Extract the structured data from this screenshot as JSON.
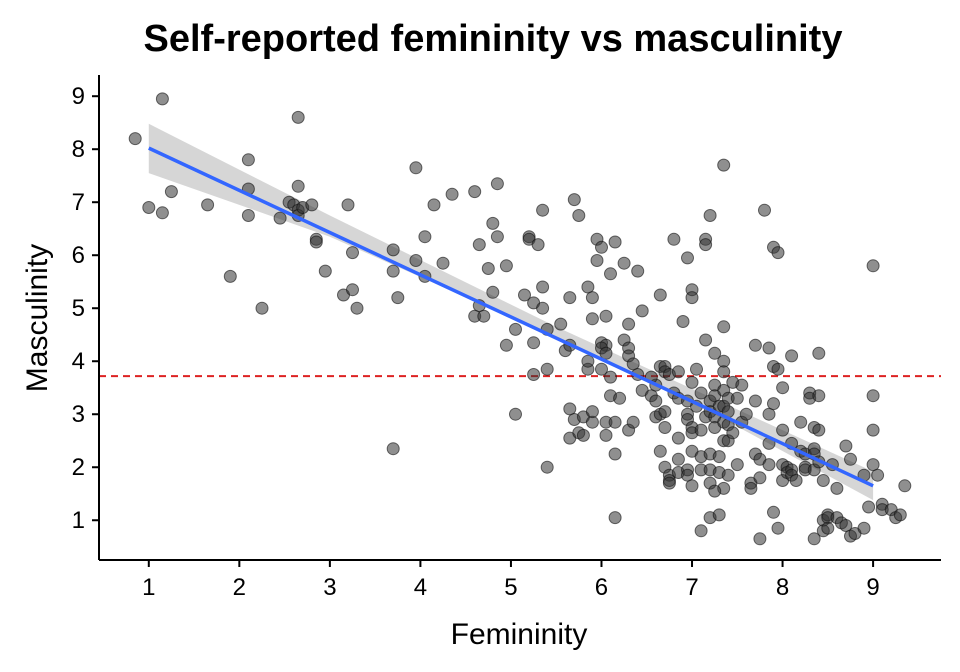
{
  "chart_data": {
    "type": "scatter",
    "title": "Self-reported femininity vs masculinity",
    "xlabel": "Femininity",
    "ylabel": "Masculinity",
    "xlim": [
      0.45,
      9.75
    ],
    "ylim": [
      0.25,
      9.4
    ],
    "x_ticks": [
      1,
      2,
      3,
      4,
      5,
      6,
      7,
      8,
      9
    ],
    "y_ticks": [
      1,
      2,
      3,
      4,
      5,
      6,
      7,
      8,
      9
    ],
    "grid": false,
    "legend": "none",
    "point_color": "#333333",
    "fit_line_color": "#3366FF",
    "band_color": "#999999",
    "reference_line_color": "#DD2222",
    "reference_line": {
      "y": 3.72,
      "style": "dashed"
    },
    "fit_line": {
      "x": [
        1,
        9
      ],
      "y": [
        8.02,
        1.65
      ]
    },
    "confidence_band": {
      "x": [
        1,
        3,
        5.5,
        7,
        9
      ],
      "lower": [
        7.55,
        6.35,
        4.45,
        3.23,
        1.38
      ],
      "upper": [
        8.48,
        6.75,
        4.65,
        3.48,
        1.92
      ]
    },
    "points": [
      [
        0.85,
        8.2
      ],
      [
        1.15,
        8.95
      ],
      [
        1.0,
        6.9
      ],
      [
        1.15,
        6.8
      ],
      [
        1.25,
        7.2
      ],
      [
        1.65,
        6.95
      ],
      [
        1.9,
        5.6
      ],
      [
        2.1,
        7.8
      ],
      [
        2.1,
        7.25
      ],
      [
        2.1,
        6.75
      ],
      [
        2.25,
        5.0
      ],
      [
        2.45,
        6.7
      ],
      [
        2.55,
        7.0
      ],
      [
        2.65,
        8.6
      ],
      [
        2.65,
        7.3
      ],
      [
        2.6,
        6.95
      ],
      [
        2.65,
        6.85
      ],
      [
        2.65,
        6.75
      ],
      [
        2.7,
        6.9
      ],
      [
        2.8,
        6.95
      ],
      [
        2.85,
        6.3
      ],
      [
        2.85,
        6.25
      ],
      [
        2.95,
        5.7
      ],
      [
        3.15,
        5.25
      ],
      [
        3.2,
        6.95
      ],
      [
        3.25,
        5.35
      ],
      [
        3.25,
        6.05
      ],
      [
        3.3,
        5.0
      ],
      [
        3.7,
        6.1
      ],
      [
        3.7,
        5.7
      ],
      [
        3.75,
        5.2
      ],
      [
        3.7,
        2.35
      ],
      [
        3.95,
        7.65
      ],
      [
        3.95,
        5.9
      ],
      [
        4.05,
        6.35
      ],
      [
        4.05,
        5.6
      ],
      [
        4.15,
        6.95
      ],
      [
        4.25,
        5.85
      ],
      [
        4.35,
        7.15
      ],
      [
        4.6,
        7.2
      ],
      [
        4.65,
        6.2
      ],
      [
        4.65,
        5.05
      ],
      [
        4.6,
        4.85
      ],
      [
        4.7,
        4.85
      ],
      [
        4.75,
        5.75
      ],
      [
        4.8,
        5.3
      ],
      [
        4.8,
        6.6
      ],
      [
        4.85,
        7.35
      ],
      [
        4.85,
        6.35
      ],
      [
        4.95,
        5.8
      ],
      [
        4.95,
        4.3
      ],
      [
        5.05,
        4.6
      ],
      [
        5.05,
        3.0
      ],
      [
        5.15,
        5.25
      ],
      [
        5.2,
        6.35
      ],
      [
        5.2,
        6.3
      ],
      [
        5.25,
        5.1
      ],
      [
        5.25,
        4.35
      ],
      [
        5.25,
        3.75
      ],
      [
        5.3,
        6.2
      ],
      [
        5.35,
        5.4
      ],
      [
        5.35,
        5.0
      ],
      [
        5.35,
        6.85
      ],
      [
        5.4,
        4.6
      ],
      [
        5.4,
        3.85
      ],
      [
        5.4,
        2.0
      ],
      [
        5.55,
        4.7
      ],
      [
        5.6,
        4.2
      ],
      [
        5.65,
        5.2
      ],
      [
        5.65,
        4.3
      ],
      [
        5.65,
        3.1
      ],
      [
        5.65,
        2.55
      ],
      [
        5.7,
        7.05
      ],
      [
        5.75,
        6.75
      ],
      [
        5.7,
        2.9
      ],
      [
        5.75,
        2.65
      ],
      [
        5.8,
        2.6
      ],
      [
        5.8,
        2.95
      ],
      [
        5.85,
        3.85
      ],
      [
        5.85,
        4.0
      ],
      [
        5.85,
        5.4
      ],
      [
        5.9,
        5.2
      ],
      [
        5.9,
        4.8
      ],
      [
        5.9,
        2.85
      ],
      [
        5.9,
        3.05
      ],
      [
        5.95,
        6.3
      ],
      [
        6.0,
        6.15
      ],
      [
        5.95,
        5.9
      ],
      [
        6.0,
        4.35
      ],
      [
        6.05,
        4.3
      ],
      [
        6.0,
        4.25
      ],
      [
        6.05,
        4.15
      ],
      [
        6.1,
        3.7
      ],
      [
        6.0,
        3.85
      ],
      [
        6.05,
        4.85
      ],
      [
        6.05,
        2.85
      ],
      [
        6.05,
        2.6
      ],
      [
        6.1,
        3.35
      ],
      [
        6.15,
        6.25
      ],
      [
        6.1,
        5.65
      ],
      [
        6.2,
        3.3
      ],
      [
        6.15,
        2.85
      ],
      [
        6.15,
        2.25
      ],
      [
        6.15,
        1.05
      ],
      [
        6.25,
        5.85
      ],
      [
        6.25,
        4.4
      ],
      [
        6.3,
        4.25
      ],
      [
        6.3,
        4.1
      ],
      [
        6.3,
        4.7
      ],
      [
        6.3,
        2.7
      ],
      [
        6.35,
        3.95
      ],
      [
        6.35,
        2.85
      ],
      [
        6.4,
        3.75
      ],
      [
        6.4,
        5.7
      ],
      [
        6.45,
        3.45
      ],
      [
        6.45,
        4.95
      ],
      [
        6.55,
        3.35
      ],
      [
        6.6,
        3.25
      ],
      [
        6.6,
        3.55
      ],
      [
        6.6,
        2.95
      ],
      [
        6.65,
        5.25
      ],
      [
        6.65,
        3.9
      ],
      [
        6.7,
        3.9
      ],
      [
        6.7,
        3.8
      ],
      [
        6.65,
        3.0
      ],
      [
        6.7,
        3.05
      ],
      [
        6.7,
        2.75
      ],
      [
        6.65,
        2.3
      ],
      [
        6.7,
        2.0
      ],
      [
        6.75,
        1.85
      ],
      [
        6.75,
        1.75
      ],
      [
        6.75,
        1.7
      ],
      [
        6.75,
        3.75
      ],
      [
        6.8,
        3.4
      ],
      [
        6.8,
        6.3
      ],
      [
        6.85,
        3.8
      ],
      [
        6.85,
        3.3
      ],
      [
        6.85,
        2.55
      ],
      [
        6.85,
        2.15
      ],
      [
        6.85,
        1.9
      ],
      [
        6.9,
        4.75
      ],
      [
        6.95,
        5.95
      ],
      [
        6.95,
        3.25
      ],
      [
        6.95,
        3.0
      ],
      [
        6.95,
        2.9
      ],
      [
        6.95,
        1.95
      ],
      [
        6.95,
        1.85
      ],
      [
        7.0,
        5.35
      ],
      [
        7.0,
        5.2
      ],
      [
        7.0,
        3.6
      ],
      [
        7.0,
        2.75
      ],
      [
        7.0,
        2.65
      ],
      [
        7.0,
        2.3
      ],
      [
        7.0,
        1.65
      ],
      [
        7.05,
        3.85
      ],
      [
        7.05,
        3.15
      ],
      [
        7.1,
        3.4
      ],
      [
        7.1,
        2.7
      ],
      [
        7.1,
        2.2
      ],
      [
        7.1,
        1.95
      ],
      [
        7.1,
        0.8
      ],
      [
        7.15,
        6.3
      ],
      [
        7.15,
        6.2
      ],
      [
        7.15,
        4.4
      ],
      [
        7.15,
        2.95
      ],
      [
        7.2,
        3.25
      ],
      [
        7.2,
        3.05
      ],
      [
        7.2,
        2.25
      ],
      [
        7.2,
        1.95
      ],
      [
        7.2,
        1.7
      ],
      [
        7.2,
        1.05
      ],
      [
        7.2,
        6.75
      ],
      [
        7.25,
        4.15
      ],
      [
        7.25,
        3.55
      ],
      [
        7.25,
        3.35
      ],
      [
        7.25,
        2.95
      ],
      [
        7.25,
        2.75
      ],
      [
        7.3,
        3.15
      ],
      [
        7.3,
        2.2
      ],
      [
        7.3,
        1.1
      ],
      [
        7.3,
        1.9
      ],
      [
        7.35,
        4.0
      ],
      [
        7.35,
        3.8
      ],
      [
        7.35,
        3.45
      ],
      [
        7.35,
        3.15
      ],
      [
        7.35,
        2.85
      ],
      [
        7.35,
        2.5
      ],
      [
        7.35,
        1.6
      ],
      [
        7.35,
        4.65
      ],
      [
        7.35,
        7.7
      ],
      [
        7.4,
        3.3
      ],
      [
        7.4,
        3.05
      ],
      [
        7.4,
        2.8
      ],
      [
        7.4,
        2.5
      ],
      [
        7.4,
        1.85
      ],
      [
        7.45,
        2.65
      ],
      [
        7.45,
        3.6
      ],
      [
        7.5,
        3.3
      ],
      [
        7.5,
        2.05
      ],
      [
        7.55,
        2.85
      ],
      [
        7.6,
        3.0
      ],
      [
        7.65,
        1.7
      ],
      [
        7.65,
        1.6
      ],
      [
        7.7,
        4.3
      ],
      [
        7.7,
        3.25
      ],
      [
        7.7,
        2.25
      ],
      [
        7.75,
        2.15
      ],
      [
        7.75,
        1.8
      ],
      [
        7.75,
        0.65
      ],
      [
        7.8,
        6.85
      ],
      [
        7.85,
        4.25
      ],
      [
        7.85,
        3.0
      ],
      [
        7.85,
        2.45
      ],
      [
        7.85,
        2.05
      ],
      [
        7.9,
        3.9
      ],
      [
        7.9,
        3.2
      ],
      [
        7.9,
        1.15
      ],
      [
        7.9,
        6.15
      ],
      [
        7.95,
        6.05
      ],
      [
        7.95,
        3.85
      ],
      [
        7.95,
        0.85
      ],
      [
        8.0,
        3.5
      ],
      [
        8.0,
        2.7
      ],
      [
        8.0,
        2.05
      ],
      [
        8.0,
        1.75
      ],
      [
        8.05,
        2.0
      ],
      [
        8.05,
        1.9
      ],
      [
        8.1,
        4.1
      ],
      [
        8.1,
        2.45
      ],
      [
        8.1,
        1.95
      ],
      [
        8.1,
        1.85
      ],
      [
        8.15,
        1.75
      ],
      [
        8.2,
        2.85
      ],
      [
        8.2,
        2.3
      ],
      [
        8.25,
        2.25
      ],
      [
        8.25,
        2.0
      ],
      [
        8.25,
        1.95
      ],
      [
        8.3,
        3.4
      ],
      [
        8.3,
        3.3
      ],
      [
        8.35,
        2.75
      ],
      [
        8.35,
        2.35
      ],
      [
        8.35,
        2.25
      ],
      [
        8.35,
        1.95
      ],
      [
        8.4,
        4.15
      ],
      [
        8.4,
        3.35
      ],
      [
        8.4,
        2.7
      ],
      [
        8.4,
        2.1
      ],
      [
        8.35,
        0.65
      ],
      [
        8.45,
        1.75
      ],
      [
        8.45,
        1.0
      ],
      [
        8.45,
        0.8
      ],
      [
        8.5,
        1.1
      ],
      [
        8.5,
        1.05
      ],
      [
        8.5,
        0.85
      ],
      [
        8.55,
        2.05
      ],
      [
        8.6,
        1.05
      ],
      [
        8.65,
        0.95
      ],
      [
        8.7,
        0.9
      ],
      [
        8.75,
        0.7
      ],
      [
        8.8,
        0.75
      ],
      [
        8.75,
        2.15
      ],
      [
        8.9,
        0.85
      ],
      [
        8.9,
        1.85
      ],
      [
        8.95,
        1.25
      ],
      [
        9.0,
        5.8
      ],
      [
        9.0,
        3.35
      ],
      [
        9.0,
        2.7
      ],
      [
        9.0,
        2.05
      ],
      [
        9.05,
        1.85
      ],
      [
        9.1,
        1.3
      ],
      [
        9.1,
        1.2
      ],
      [
        9.2,
        1.2
      ],
      [
        9.25,
        1.05
      ],
      [
        9.3,
        1.1
      ],
      [
        9.35,
        1.65
      ],
      [
        8.7,
        2.4
      ],
      [
        8.6,
        1.6
      ],
      [
        7.55,
        3.55
      ],
      [
        6.55,
        3.7
      ],
      [
        7.25,
        1.55
      ]
    ]
  }
}
